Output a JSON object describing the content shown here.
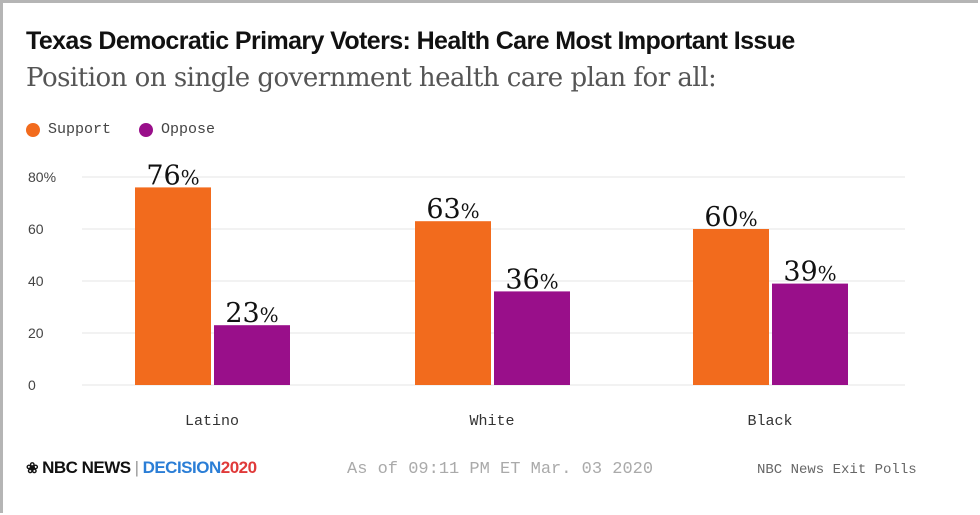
{
  "chart_data": {
    "type": "bar",
    "title": "Texas Democratic Primary Voters: Health Care Most Important Issue",
    "subtitle": "Position on single government health care plan for all:",
    "categories": [
      "Latino",
      "White",
      "Black"
    ],
    "series": [
      {
        "name": "Support",
        "color": "#f26b1d",
        "values": [
          76,
          63,
          60
        ],
        "labels": [
          "76%",
          "63%",
          "60%"
        ]
      },
      {
        "name": "Oppose",
        "color": "#990f8a",
        "values": [
          23,
          36,
          39
        ],
        "labels": [
          "23%",
          "36%",
          "39%"
        ]
      }
    ],
    "yticks": [
      0,
      20,
      40,
      60,
      80
    ],
    "ytick_labels": [
      "0",
      "20",
      "40",
      "60",
      "80%"
    ],
    "ylim": [
      0,
      80
    ],
    "grid": true,
    "legend": "top-left",
    "xlabel": "",
    "ylabel": ""
  },
  "footer": {
    "brand": "NBC NEWS",
    "separator": "|",
    "decision": "DECISION",
    "year": "2020",
    "as_of": "As of 09:11 PM ET Mar. 03 2020",
    "source": "NBC News Exit Polls"
  }
}
